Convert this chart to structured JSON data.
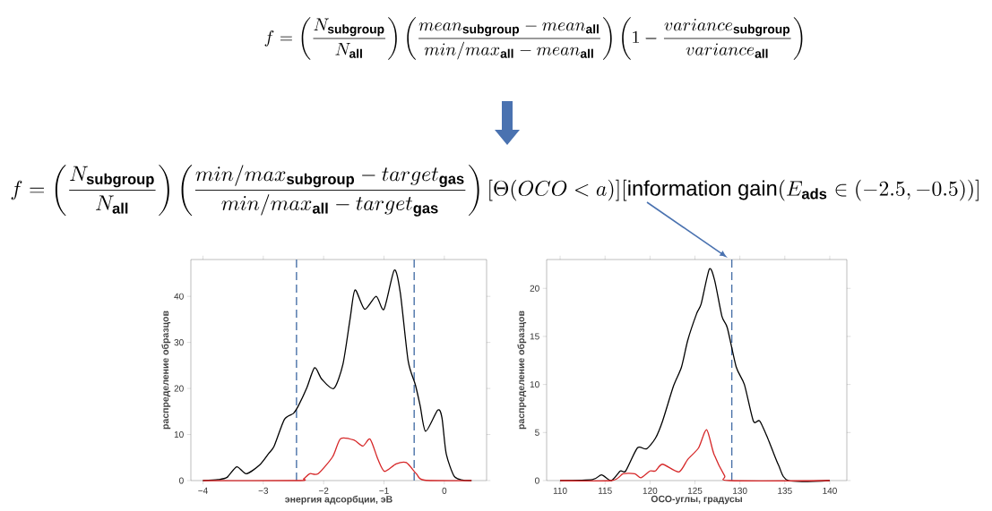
{
  "chart_data": [
    {
      "type": "line",
      "xlabel": "энергия адсорбции, эВ",
      "ylabel": "распределение образцов",
      "xlim": [
        -4.2,
        0.7
      ],
      "ylim": [
        0,
        48
      ],
      "xticks": [
        {
          "value": -4,
          "label": "−4"
        },
        {
          "value": -3,
          "label": "−3"
        },
        {
          "value": -2,
          "label": "−2"
        },
        {
          "value": -1,
          "label": "−1"
        },
        0
      ],
      "yticks": [
        0,
        10,
        20,
        30,
        40
      ],
      "annotations": [
        "f=\\left(\\frac{N_{\\mathbf{subgroup}}}{N_{\\mathbf{all}}}\\right)\\left(\\frac{mean_{\\mathbf{subgroup}}-mean_{\\mathbf{all}}}{min/max_{\\mathbf{all}}-mean_{\\mathbf{all}}}\\right)\\left(1-\\frac{variance_{\\mathbf{subgroup}}}{variance_{\\mathbf{all}}}\\right)",
        "f=\\left(\\frac{N_{\\mathbf{subgroup}}}{N_{\\mathbf{all}}}\\right)\\left(\\frac{min/max_{\\mathbf{subgroup}}-target_{\\mathbf{gas}}}{min/max_{\\mathbf{all}}-target_{\\mathbf{gas}}}\\right)[\\Theta(OCO<a)][\\mathrm{information\\ gain}(E_{\\mathbf{ads}}\\in(-2.5,-0.5))]"
      ],
      "ref_lines": [
        {
          "axis": "x",
          "value": -2.45,
          "color": "#4a72a8",
          "line_style": "dashed"
        },
        {
          "axis": "x",
          "value": -0.5,
          "color": "#4a72a8",
          "line_style": "dashed"
        }
      ],
      "series": [
        {
          "color": "#000000",
          "x": [
            -4,
            -3.75,
            -3.6,
            -3.44,
            -3.28,
            -3.06,
            -2.91,
            -2.82,
            -2.65,
            -2.5,
            -2.42,
            -2.28,
            -2.15,
            -2.03,
            -1.83,
            -1.68,
            -1.56,
            -1.48,
            -1.32,
            -1.13,
            -1.0,
            -0.83,
            -0.73,
            -0.6,
            -0.48,
            -0.4,
            -0.31,
            -0.11,
            -0.04,
            0.03,
            0.16,
            0.3,
            0.45
          ],
          "values": [
            0,
            0.2,
            0.7,
            3.0,
            1.5,
            3.4,
            5.9,
            7.5,
            13.3,
            14.6,
            16.2,
            20.1,
            24.5,
            22,
            20,
            25.3,
            35.3,
            41.4,
            37.2,
            40,
            37.2,
            45.7,
            40.8,
            26,
            20.8,
            16.2,
            10.7,
            15.3,
            13.7,
            5.9,
            1.0,
            0.1,
            0
          ]
        },
        {
          "color": "#d62728",
          "x": [
            -4,
            -2.42,
            -2.33,
            -2.23,
            -2.09,
            -1.85,
            -1.72,
            -1.5,
            -1.35,
            -1.23,
            -1.1,
            -0.99,
            -0.8,
            -0.63,
            -0.46,
            -0.33,
            0.45
          ],
          "values": [
            0,
            0,
            0.4,
            1.5,
            1.5,
            5.2,
            9.1,
            8.8,
            7.5,
            9.0,
            4.6,
            2.0,
            3.6,
            3.9,
            1.4,
            0.1,
            0
          ]
        }
      ]
    },
    {
      "type": "line",
      "xlabel": "ОСО-углы, градусы",
      "ylabel": "распределение образцов",
      "xlim": [
        108.5,
        141.9
      ],
      "ylim": [
        0,
        23
      ],
      "xticks": [
        110,
        115,
        120,
        125,
        130,
        135,
        140
      ],
      "yticks": [
        0,
        5,
        10,
        15,
        20
      ],
      "ref_lines": [
        {
          "axis": "x",
          "value": 129.1,
          "color": "#4a72a8",
          "line_style": "dashed"
        }
      ],
      "series": [
        {
          "color": "#000000",
          "x": [
            110,
            113.6,
            114.6,
            115.7,
            116.7,
            117.3,
            118.6,
            119.6,
            120.6,
            121.4,
            122.6,
            123.5,
            124.2,
            125.2,
            125.7,
            126.6,
            127.2,
            128,
            128.6,
            129.6,
            130.5,
            131.5,
            132.2,
            133.1,
            134.3,
            135.4,
            140
          ],
          "values": [
            0,
            0.1,
            0.6,
            0,
            1.0,
            1.0,
            3.4,
            3.3,
            4.4,
            6.2,
            9.8,
            11.8,
            14.6,
            17.4,
            18.4,
            22.0,
            20.8,
            17.1,
            15.9,
            11.8,
            10.0,
            6.2,
            6.2,
            4.4,
            1.6,
            0,
            0
          ]
        },
        {
          "color": "#d62728",
          "x": [
            110,
            115.7,
            117,
            118.3,
            119,
            120,
            120.6,
            121.4,
            123.2,
            124.2,
            125.4,
            126.3,
            127.1,
            128.3,
            128.9,
            140
          ],
          "values": [
            0,
            0,
            0.7,
            0.7,
            0.3,
            1.0,
            1.0,
            1.7,
            0.9,
            2.2,
            3.4,
            5.3,
            2.8,
            0.5,
            0,
            0
          ]
        }
      ]
    }
  ]
}
